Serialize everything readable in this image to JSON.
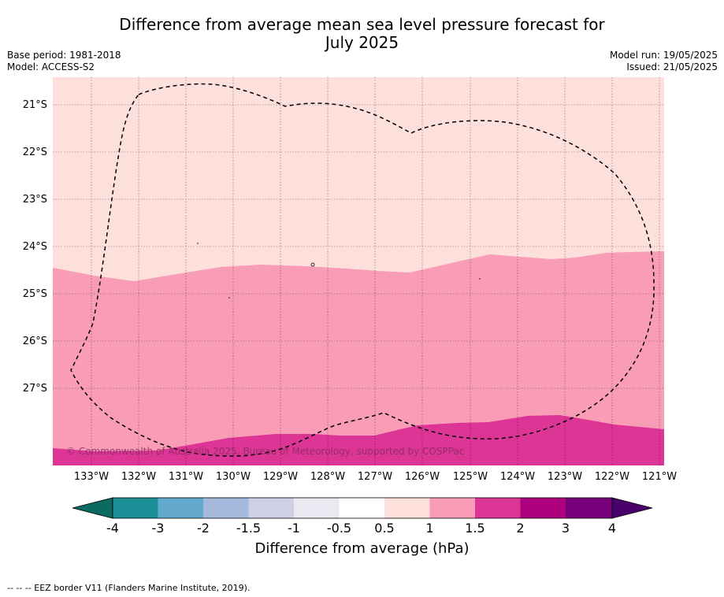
{
  "title_line1": "Difference from average mean sea level pressure forecast for",
  "title_line2": "July 2025",
  "base_period": "Base period: 1981-2018",
  "model": "Model: ACCESS-S2",
  "model_run": "Model run: 19/05/2025",
  "issued": "Issued: 21/05/2025",
  "copyright": "© Commonwealth of Australia 2025, Bureau of Meteorology, supported by COSPPac",
  "lat_labels": [
    "21°S",
    "22°S",
    "23°S",
    "24°S",
    "25°S",
    "26°S",
    "27°S"
  ],
  "lon_labels": [
    "133°W",
    "132°W",
    "131°W",
    "130°W",
    "129°W",
    "128°W",
    "127°W",
    "126°W",
    "125°W",
    "124°W",
    "123°W",
    "122°W",
    "121°W"
  ],
  "colorbar": {
    "ticks": [
      "-4",
      "-3",
      "-2",
      "-1.5",
      "-1",
      "-0.5",
      "0.5",
      "1",
      "1.5",
      "2",
      "3",
      "4"
    ],
    "colors": [
      "#0b6b60",
      "#1a8f96",
      "#62a9cd",
      "#a5b9dc",
      "#cfd0e6",
      "#ece8f1",
      "#ffffff",
      "#fde0dc",
      "#f99db6",
      "#dc3596",
      "#ad017d",
      "#76007a",
      "#4a006a"
    ],
    "label": "Difference from average (hPa)"
  },
  "map_fill": {
    "band_0_5_to_1": "#fde0dc",
    "band_1_to_1_5": "#f99db6",
    "band_1_5_to_2": "#dc3596"
  },
  "footnote": "--  --  -- EEZ border V11 (Flanders Marine Institute, 2019)."
}
